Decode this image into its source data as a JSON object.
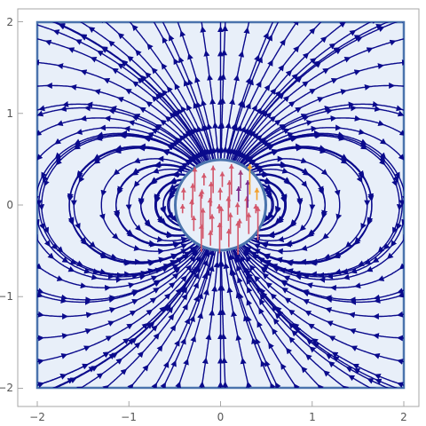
{
  "plot": {
    "x_ticks": [
      "−2",
      "−1",
      "0",
      "1",
      "2"
    ],
    "y_ticks": [
      "−2",
      "−1",
      "0",
      "1",
      "2"
    ],
    "x_range": [
      -2,
      2
    ],
    "y_range": [
      -2,
      2
    ],
    "region": "square [−2,2] × [−2,2] with circular hole of radius 0.5 at origin",
    "outer_region_fill": "#e8eff9",
    "outer_border_color": "#4a73ad",
    "streamline_color": "#0a0a8c",
    "inner_arrow_colors": [
      "#d3566a",
      "#a23f7c",
      "#7a2a8c",
      "#f2a12e"
    ],
    "field_description": "dipole-like streamlines outside; upward vectors inside disk"
  }
}
